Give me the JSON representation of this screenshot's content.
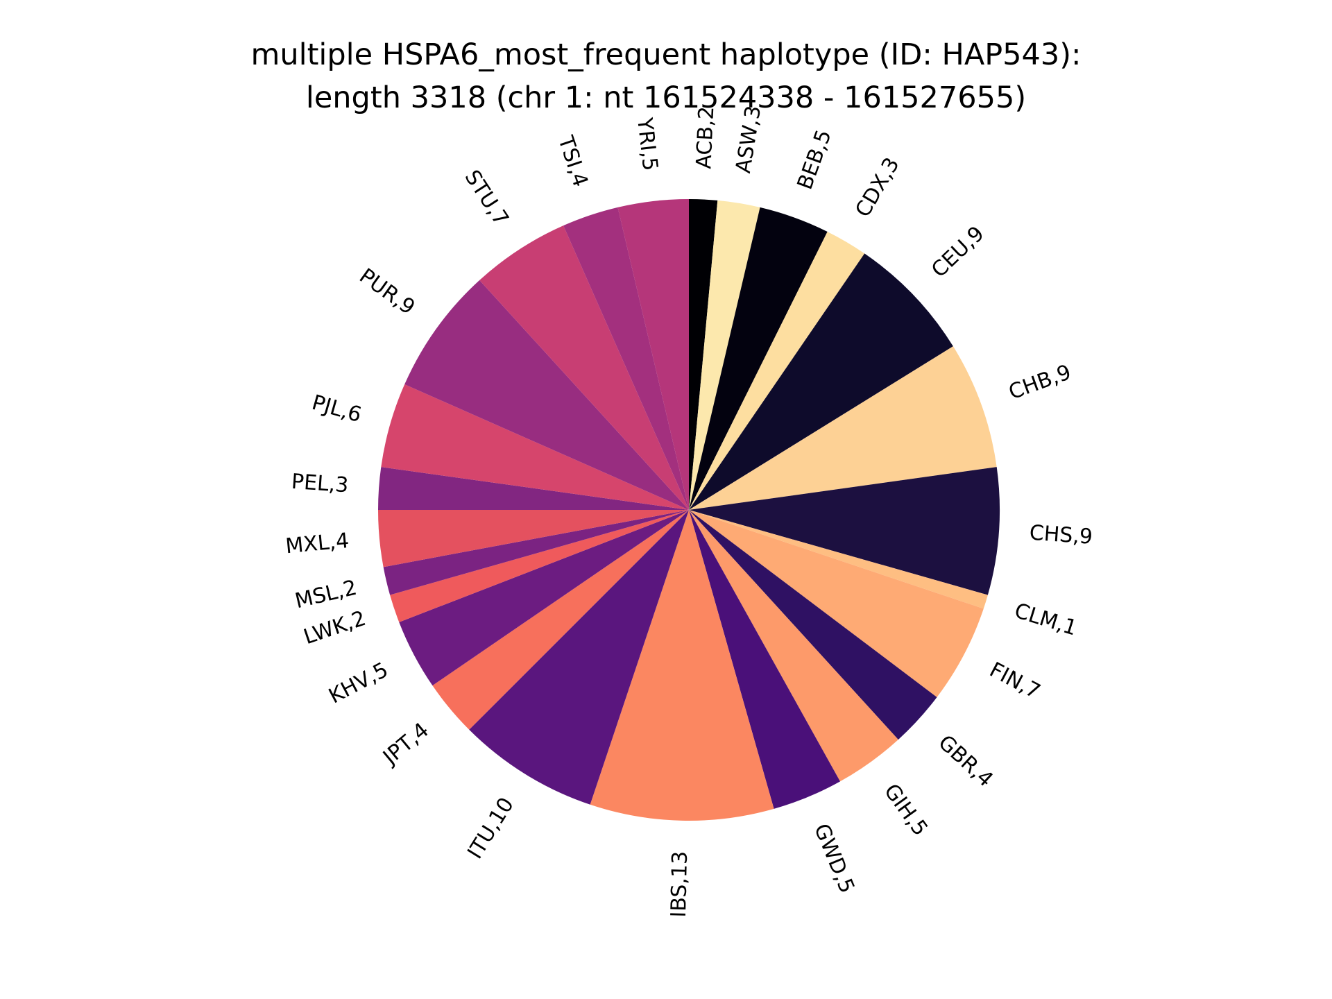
{
  "chart_data": {
    "type": "pie",
    "title_lines": [
      "multiple HSPA6_most_frequent haplotype (ID: HAP543):",
      "length 3318 (chr 1: nt 161524338 - 161527655)"
    ],
    "slices": [
      {
        "label": "ACB,2",
        "category": "ACB",
        "value": 2,
        "color": "#000004"
      },
      {
        "label": "ASW,3",
        "category": "ASW",
        "value": 3,
        "color": "#fce8ad"
      },
      {
        "label": "BEB,5",
        "category": "BEB",
        "value": 5,
        "color": "#03020f"
      },
      {
        "label": "CDX,3",
        "category": "CDX",
        "value": 3,
        "color": "#fddea0"
      },
      {
        "label": "CEU,9",
        "category": "CEU",
        "value": 9,
        "color": "#0e0b2b"
      },
      {
        "label": "CHB,9",
        "category": "CHB",
        "value": 9,
        "color": "#fdd195"
      },
      {
        "label": "CHS,9",
        "category": "CHS",
        "value": 9,
        "color": "#1c1040"
      },
      {
        "label": "CLM,1",
        "category": "CLM",
        "value": 1,
        "color": "#febe82"
      },
      {
        "label": "FIN,7",
        "category": "FIN",
        "value": 7,
        "color": "#feaa74"
      },
      {
        "label": "GBR,4",
        "category": "GBR",
        "value": 4,
        "color": "#2f1163"
      },
      {
        "label": "GIH,5",
        "category": "GIH",
        "value": 5,
        "color": "#fd9a6a"
      },
      {
        "label": "GWD,5",
        "category": "GWD",
        "value": 5,
        "color": "#4a1079"
      },
      {
        "label": "IBS,13",
        "category": "IBS",
        "value": 13,
        "color": "#fb8761"
      },
      {
        "label": "ITU,10",
        "category": "ITU",
        "value": 10,
        "color": "#5a167e"
      },
      {
        "label": "JPT,4",
        "category": "JPT",
        "value": 4,
        "color": "#f7705c"
      },
      {
        "label": "KHV,5",
        "category": "KHV",
        "value": 5,
        "color": "#6c1c81"
      },
      {
        "label": "LWK,2",
        "category": "LWK",
        "value": 2,
        "color": "#ef5a5c"
      },
      {
        "label": "MSL,2",
        "category": "MSL",
        "value": 2,
        "color": "#7b2382"
      },
      {
        "label": "MXL,4",
        "category": "MXL",
        "value": 4,
        "color": "#e4515f"
      },
      {
        "label": "PEL,3",
        "category": "PEL",
        "value": 3,
        "color": "#822681"
      },
      {
        "label": "PJL,6",
        "category": "PJL",
        "value": 6,
        "color": "#d6456c"
      },
      {
        "label": "PUR,9",
        "category": "PUR",
        "value": 9,
        "color": "#982d80"
      },
      {
        "label": "STU,7",
        "category": "STU",
        "value": 7,
        "color": "#c83e73"
      },
      {
        "label": "TSI,4",
        "category": "TSI",
        "value": 4,
        "color": "#a3307e"
      },
      {
        "label": "YRI,5",
        "category": "YRI",
        "value": 5,
        "color": "#b5367a"
      }
    ],
    "start_angle_deg": 90,
    "direction": "clockwise",
    "legend": "none"
  }
}
